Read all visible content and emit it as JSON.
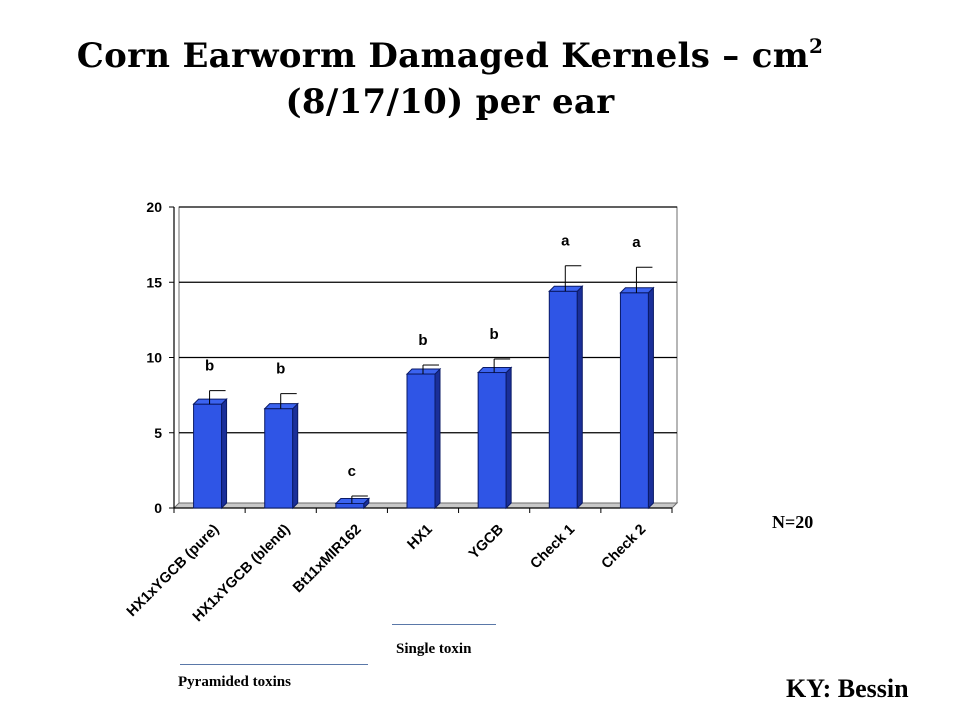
{
  "title": {
    "line1": "Corn Earworm Damaged Kernels – cm",
    "superscript": "2",
    "line2": "(8/17/10) per ear"
  },
  "chart_data": {
    "type": "bar",
    "categories": [
      "HX1xYGCB (pure)",
      "HX1xYGCB (blend)",
      "Bt11xMIR162",
      "HX1",
      "YGCB",
      "Check 1",
      "Check 2"
    ],
    "values": [
      6.9,
      6.6,
      0.3,
      8.9,
      9.0,
      14.4,
      14.3
    ],
    "error_upper": [
      7.8,
      7.6,
      0.8,
      9.5,
      9.9,
      16.1,
      16.0
    ],
    "significance_letters": [
      "b",
      "b",
      "c",
      "b",
      "b",
      "a",
      "a"
    ],
    "yticks": [
      0,
      5,
      10,
      15,
      20
    ],
    "ylim": [
      0,
      20
    ],
    "grid": true,
    "bar_color": "#2f55e6"
  },
  "annotations": {
    "n": "N=20",
    "location": "KY: Bessin",
    "groups": [
      {
        "label": "Pyramided toxins"
      },
      {
        "label": "Single toxin"
      }
    ]
  }
}
